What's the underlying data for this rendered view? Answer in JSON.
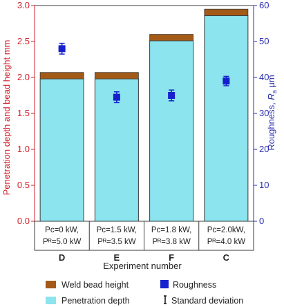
{
  "chart_data": {
    "type": "bar",
    "categories": [
      "D",
      "E",
      "F",
      "C"
    ],
    "condition_labels": [
      [
        "Pᴄ=0 kW,",
        "Pᴿ=5.0 kW"
      ],
      [
        "Pᴄ=1.5 kW,",
        "Pᴿ=3.5 kW"
      ],
      [
        "Pᴄ=1.8 kW,",
        "Pᴿ=3.8 kW"
      ],
      [
        "Pᴄ=2.0kW,",
        "Pᴿ=4.0 kW"
      ]
    ],
    "series": [
      {
        "name": "Penetration depth",
        "axis": "left",
        "values": [
          1.98,
          1.98,
          2.51,
          2.86
        ]
      },
      {
        "name": "Weld bead height",
        "axis": "left",
        "values": [
          0.09,
          0.09,
          0.09,
          0.09
        ]
      },
      {
        "name": "Roughness",
        "axis": "right",
        "values": [
          48.0,
          34.5,
          35.0,
          39.0
        ],
        "error": [
          1.5,
          1.5,
          1.5,
          1.3
        ]
      }
    ],
    "xlabel": "Experiment number",
    "ylabel_left": "Penetration depth and bead height  mm",
    "ylabel_right_prefix": "Roughness, ",
    "ylabel_right_var": "R",
    "ylabel_right_sub": "a",
    "ylabel_right_unit": "  μm",
    "ylim_left": [
      0,
      3.0
    ],
    "ylim_right": [
      0,
      60
    ],
    "yticks_left": [
      "0.0",
      "0.5",
      "1.0",
      "1.5",
      "2.0",
      "2.5",
      "3.0"
    ],
    "yticks_right": [
      "0",
      "10",
      "20",
      "30",
      "40",
      "50",
      "60"
    ],
    "legend": [
      {
        "label": "Weld bead height",
        "marker": "swatch",
        "series": "Weld bead height"
      },
      {
        "label": "Roughness",
        "marker": "swatch",
        "series": "Roughness"
      },
      {
        "label": "Penetration depth",
        "marker": "swatch",
        "series": "Penetration depth"
      },
      {
        "label": "Standard deviation",
        "marker": "errorbar"
      }
    ],
    "legend_position": "bottom",
    "grid": false,
    "colors": {
      "penetration": "#8BE4EE",
      "bead": "#A35A17",
      "roughness": "#1620CC",
      "left_axis": "#D0202A",
      "right_axis": "#2A2EB0",
      "frame": "#3a3a3a"
    }
  }
}
